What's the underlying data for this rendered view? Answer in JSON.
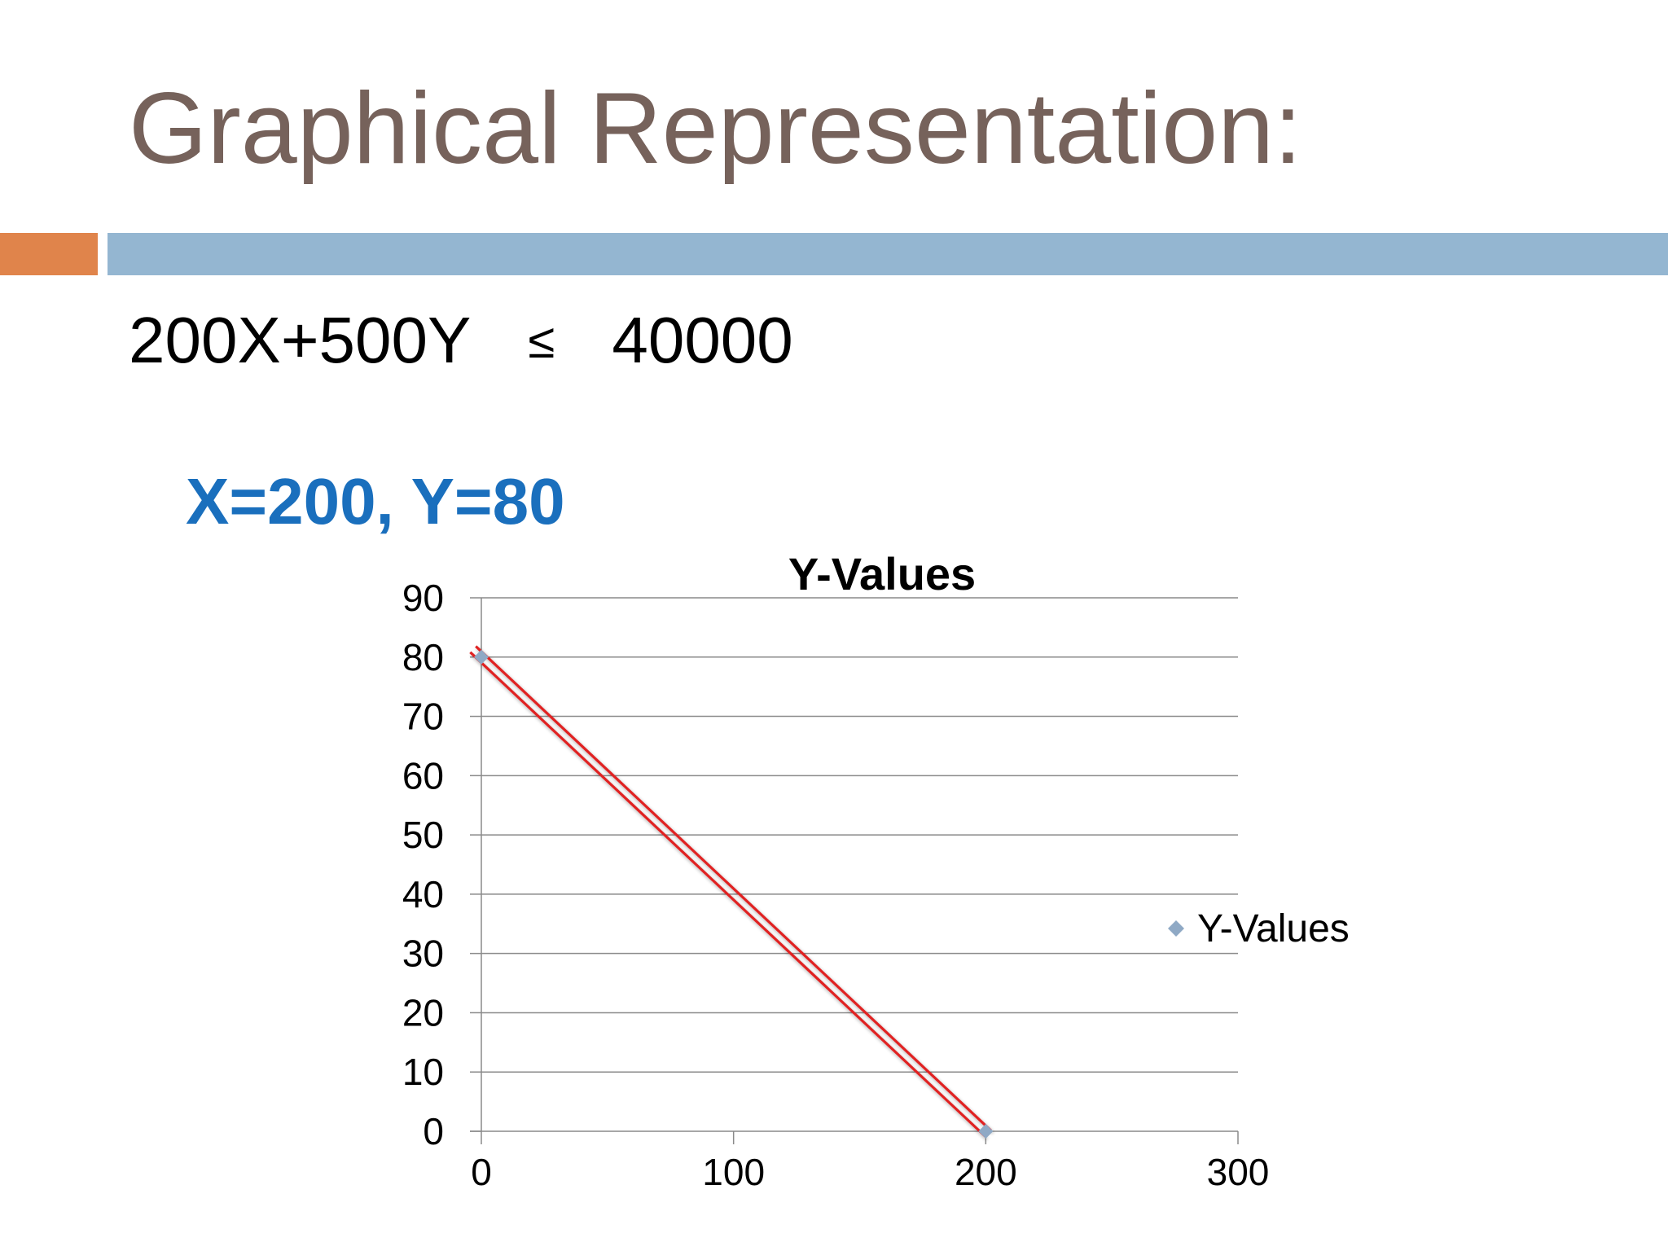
{
  "slide": {
    "title": "Graphical Representation:",
    "equation": {
      "lhs": "200X+500Y",
      "operator": "≤",
      "rhs": "40000"
    },
    "solution": "X=200, Y=80"
  },
  "colors": {
    "title": "#76625b",
    "accent_orange": "#e0844b",
    "accent_blue": "#94b6d1",
    "solution": "#1a6fbd",
    "marker": "#8fa9c5",
    "line": "#e02424",
    "grid": "#8a8a8a"
  },
  "chart_data": {
    "type": "scatter",
    "title": "Y-Values",
    "xlabel": "",
    "ylabel": "",
    "xlim": [
      0,
      300
    ],
    "ylim": [
      0,
      90
    ],
    "x_ticks": [
      0,
      100,
      200,
      300
    ],
    "y_ticks": [
      0,
      10,
      20,
      30,
      40,
      50,
      60,
      70,
      80,
      90
    ],
    "grid": true,
    "legend": {
      "position": "right",
      "entries": [
        "Y-Values"
      ]
    },
    "series": [
      {
        "name": "Y-Values",
        "x": [
          0,
          200
        ],
        "y": [
          80,
          0
        ],
        "marker": "diamond"
      }
    ],
    "annotations": [
      {
        "type": "line",
        "x": [
          0,
          200
        ],
        "y": [
          80,
          0
        ],
        "color": "red"
      }
    ]
  }
}
